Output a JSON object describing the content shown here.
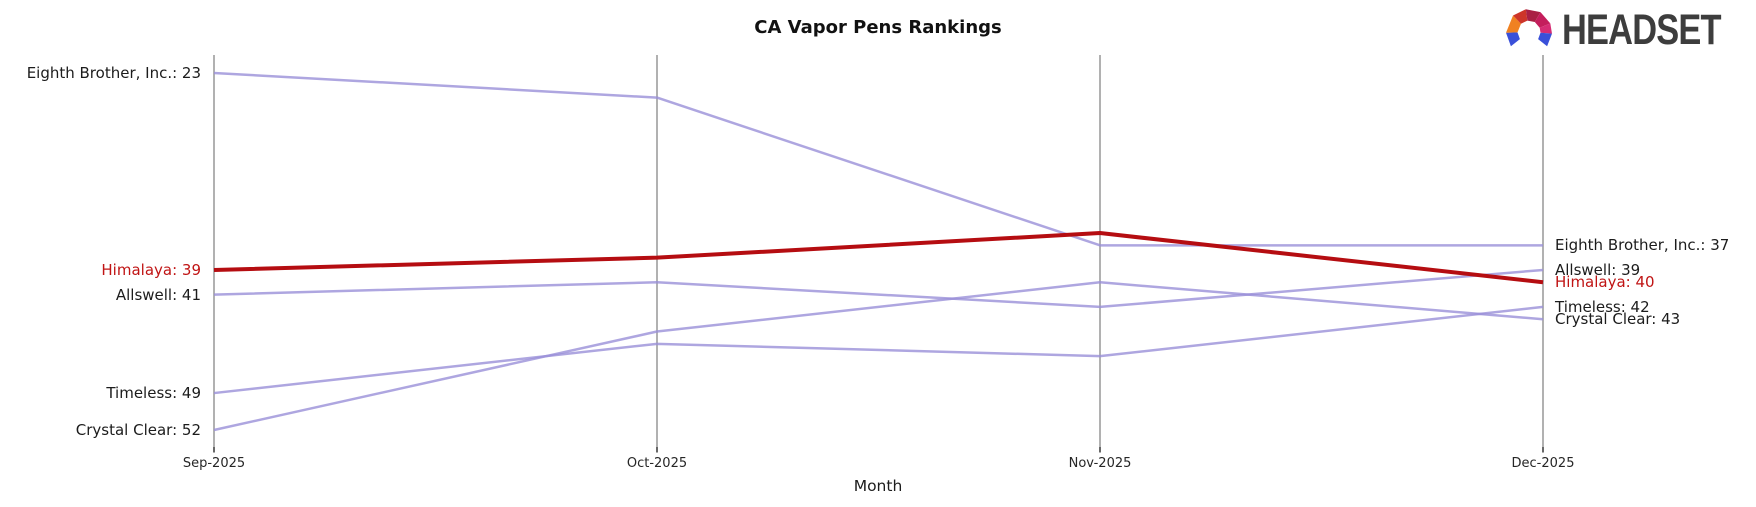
{
  "logo": {
    "text": "HEADSET",
    "text_color": "#3d3d3d",
    "icon_colors": [
      "#3A50D9",
      "#F08121",
      "#CD3529",
      "#A92044",
      "#C41E5C",
      "#D62D74",
      "#3A50D9"
    ]
  },
  "chart_data": {
    "type": "line",
    "subtype": "bump-ranking-chart",
    "title": "CA Vapor Pens Rankings",
    "xlabel": "Month",
    "x": [
      "Sep-2025",
      "Oct-2025",
      "Nov-2025",
      "Dec-2025"
    ],
    "series": [
      {
        "name": "Eighth Brother, Inc.",
        "values": [
          23,
          25,
          37,
          37
        ],
        "highlighted": false
      },
      {
        "name": "Himalaya",
        "values": [
          39,
          38,
          36,
          40
        ],
        "highlighted": true
      },
      {
        "name": "Allswell",
        "values": [
          41,
          40,
          42,
          39
        ],
        "highlighted": false
      },
      {
        "name": "Timeless",
        "values": [
          49,
          45,
          46,
          42
        ],
        "highlighted": false
      },
      {
        "name": "Crystal Clear",
        "values": [
          52,
          44,
          40,
          43
        ],
        "highlighted": false
      }
    ],
    "start_labels": [
      "Eighth Brother, Inc.: 23",
      "Himalaya: 39",
      "Allswell: 41",
      "Timeless: 49",
      "Crystal Clear: 52"
    ],
    "end_labels": [
      "Eighth Brother, Inc.: 37",
      "Himalaya: 40",
      "Allswell: 39",
      "Timeless: 42",
      "Crystal Clear: 43"
    ],
    "ylim": [
      23,
      52
    ],
    "y_direction": "lower value plotted higher",
    "grid": "vertical month axes only",
    "legend": "inline end labels",
    "colors": {
      "line": "#9A90D8",
      "highlight_line": "#B50D11",
      "highlight_text": "#C01414",
      "text": "#1c1c1c",
      "axis": "#B1B1B1",
      "tick": "#262626"
    }
  }
}
